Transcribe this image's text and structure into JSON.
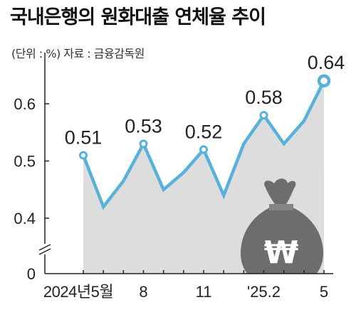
{
  "chart_data": {
    "type": "line",
    "title": "국내은행의 원화대출 연체율 추이",
    "subtitle": "(단위 : %)   자료 : 금융감독원",
    "unit": "%",
    "source": "금융감독원",
    "x": [
      "2024년5월",
      "2024년6월",
      "2024년7월",
      "2024년8월",
      "2024년9월",
      "2024년10월",
      "2024년11월",
      "2024년12월",
      "2025년1월",
      "2025년2월",
      "2025년3월",
      "2025년4월",
      "2025년5월"
    ],
    "x_tick_labels": [
      "2024년5월",
      "8",
      "11",
      "'25.2",
      "5"
    ],
    "y_tick_labels": [
      "0",
      "0.4",
      "0.5",
      "0.6"
    ],
    "ylim": [
      0.4,
      0.65
    ],
    "y_axis_break": true,
    "series": [
      {
        "values": [
          0.51,
          0.42,
          0.465,
          0.53,
          0.45,
          0.48,
          0.52,
          0.44,
          0.53,
          0.58,
          0.53,
          0.57,
          0.64
        ]
      }
    ],
    "data_labels": [
      {
        "x": "2024년5월",
        "text": "0.51"
      },
      {
        "x": "2024년8월",
        "text": "0.53"
      },
      {
        "x": "2024년11월",
        "text": "0.52"
      },
      {
        "x": "2025년2월",
        "text": "0.58"
      },
      {
        "x": "2025년5월",
        "text": "0.64"
      }
    ],
    "colors": {
      "line": "#57b1d9",
      "area": "#dddddd",
      "marker_fill": "#ffffff",
      "axis": "#222222",
      "illustration": "#6d6d6d"
    },
    "illustration": "money-bag-won-icon",
    "illustration_symbol": "₩"
  }
}
